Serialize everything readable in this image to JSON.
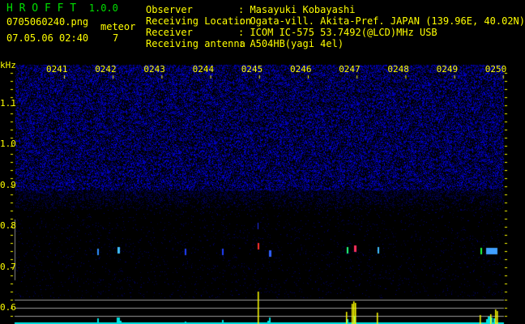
{
  "app": {
    "title": "H R O F F T",
    "version": "1.0.0"
  },
  "file": {
    "name": "0705060240.png",
    "datetime": "07.05.06 02:40"
  },
  "meteor": {
    "label": "meteor",
    "count": "7"
  },
  "info": [
    {
      "label": "Observer",
      "value": ": Masayuki Kobayashi"
    },
    {
      "label": "Receiving Location",
      "value": ": Ogata-vill. Akita-Pref. JAPAN (139.96E, 40.02N)"
    },
    {
      "label": "Receiver",
      "value": ": ICOM IC-575 53.7492(@LCD)MHz USB"
    },
    {
      "label": "Receiving antenna",
      "value": ": A504HB(yagi 4el)"
    }
  ],
  "spectrogram": {
    "y_unit": "kHz",
    "x_ticks": [
      "0241",
      "0242",
      "0243",
      "0244",
      "0245",
      "0246",
      "0247",
      "0248",
      "0249",
      "0250"
    ],
    "y_ticks": [
      "1.1",
      "1.0",
      "0.9",
      "0.8",
      "0.7",
      "0.6"
    ],
    "colors": {
      "noise": "#1a1aff",
      "label": "#ffff00",
      "title": "#00e000",
      "bars_low": "#00e0e0",
      "bars_high": "#ffff00"
    }
  }
}
